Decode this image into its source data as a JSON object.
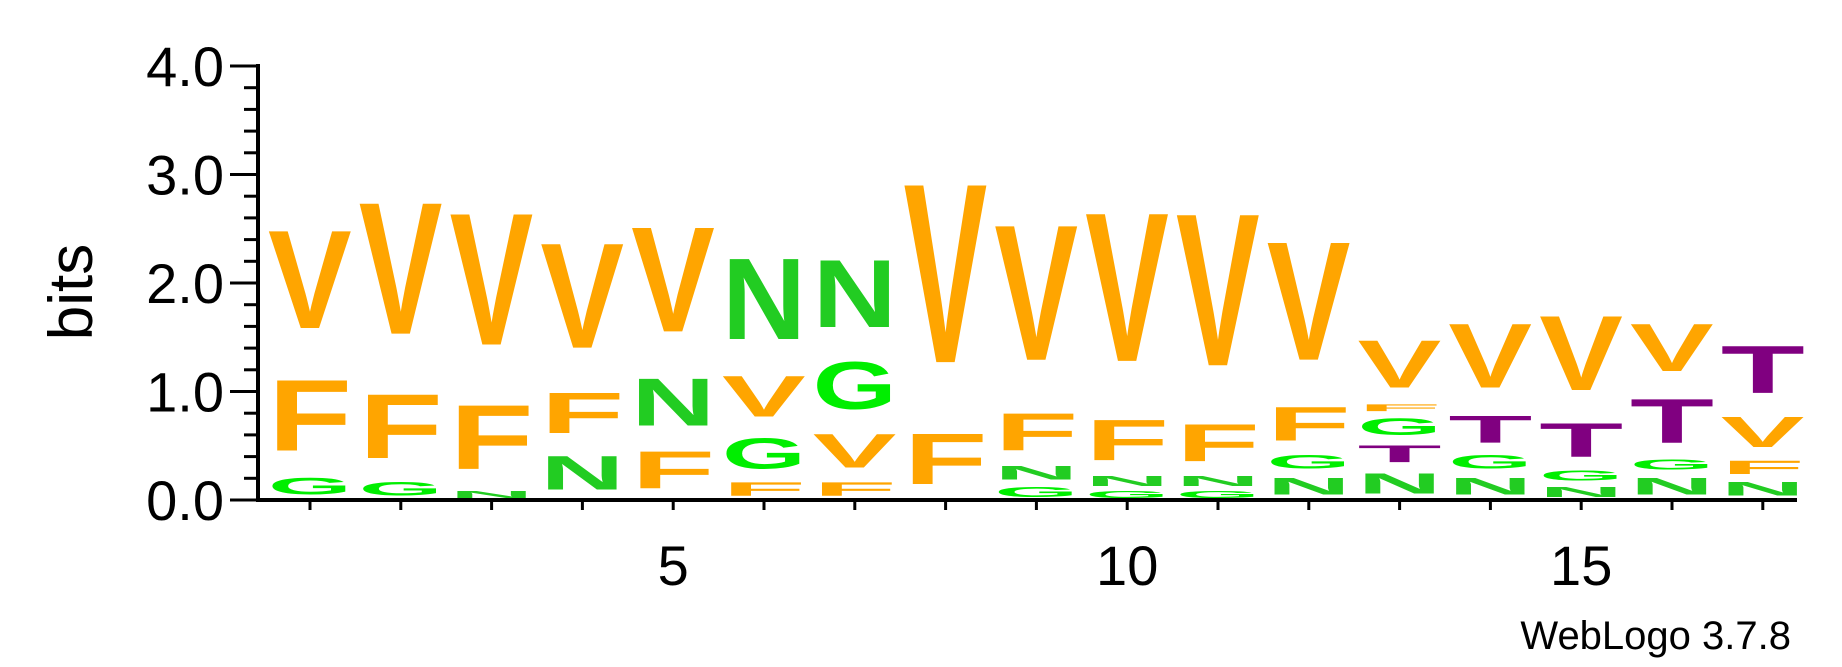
{
  "chart_data": {
    "type": "sequence-logo",
    "ylabel": "bits",
    "ylim": [
      0,
      4.0
    ],
    "yticks": [
      "0.0",
      "1.0",
      "2.0",
      "3.0",
      "4.0"
    ],
    "xticks": [
      "5",
      "10",
      "15"
    ],
    "footer": "WebLogo 3.7.8",
    "colors": {
      "V": "#FFA500",
      "F": "#FFA500",
      "N": "#22CC22",
      "G": "#00EE00",
      "T": "#800080"
    },
    "positions": [
      {
        "position": 1,
        "stack": [
          {
            "letter": "G",
            "bits": 0.25
          },
          {
            "letter": "F",
            "bits": 1.05
          },
          {
            "letter": "V",
            "bits": 1.45
          }
        ]
      },
      {
        "position": 2,
        "stack": [
          {
            "letter": "G",
            "bits": 0.2
          },
          {
            "letter": "F",
            "bits": 0.95
          },
          {
            "letter": "V",
            "bits": 1.95
          }
        ]
      },
      {
        "position": 3,
        "stack": [
          {
            "letter": "N",
            "bits": 0.1
          },
          {
            "letter": "F",
            "bits": 0.95
          },
          {
            "letter": "V",
            "bits": 1.95
          }
        ]
      },
      {
        "position": 4,
        "stack": [
          {
            "letter": "N",
            "bits": 0.5
          },
          {
            "letter": "F",
            "bits": 0.6
          },
          {
            "letter": "V",
            "bits": 1.55
          }
        ]
      },
      {
        "position": 5,
        "stack": [
          {
            "letter": "F",
            "bits": 0.55
          },
          {
            "letter": "N",
            "bits": 0.7
          },
          {
            "letter": "V",
            "bits": 1.55
          }
        ]
      },
      {
        "position": 6,
        "stack": [
          {
            "letter": "F",
            "bits": 0.2
          },
          {
            "letter": "G",
            "bits": 0.45
          },
          {
            "letter": "V",
            "bits": 0.6
          },
          {
            "letter": "N",
            "bits": 1.2
          }
        ]
      },
      {
        "position": 7,
        "stack": [
          {
            "letter": "F",
            "bits": 0.2
          },
          {
            "letter": "V",
            "bits": 0.5
          },
          {
            "letter": "G",
            "bits": 0.7
          },
          {
            "letter": "N",
            "bits": 1.0
          }
        ]
      },
      {
        "position": 8,
        "stack": [
          {
            "letter": "F",
            "bits": 0.75
          },
          {
            "letter": "V",
            "bits": 2.65
          }
        ]
      },
      {
        "position": 9,
        "stack": [
          {
            "letter": "G",
            "bits": 0.15
          },
          {
            "letter": "N",
            "bits": 0.2
          },
          {
            "letter": "F",
            "bits": 0.55
          },
          {
            "letter": "V",
            "bits": 2.0
          }
        ]
      },
      {
        "position": 10,
        "stack": [
          {
            "letter": "G",
            "bits": 0.1
          },
          {
            "letter": "N",
            "bits": 0.15
          },
          {
            "letter": "F",
            "bits": 0.6
          },
          {
            "letter": "V",
            "bits": 2.2
          }
        ]
      },
      {
        "position": 11,
        "stack": [
          {
            "letter": "G",
            "bits": 0.1
          },
          {
            "letter": "N",
            "bits": 0.15
          },
          {
            "letter": "F",
            "bits": 0.55
          },
          {
            "letter": "V",
            "bits": 2.25
          }
        ]
      },
      {
        "position": 12,
        "stack": [
          {
            "letter": "N",
            "bits": 0.25
          },
          {
            "letter": "G",
            "bits": 0.2
          },
          {
            "letter": "F",
            "bits": 0.5
          },
          {
            "letter": "V",
            "bits": 1.75
          }
        ]
      },
      {
        "position": 13,
        "stack": [
          {
            "letter": "N",
            "bits": 0.3
          },
          {
            "letter": "T",
            "bits": 0.25
          },
          {
            "letter": "G",
            "bits": 0.25
          },
          {
            "letter": "F",
            "bits": 0.1
          },
          {
            "letter": "V",
            "bits": 0.7
          }
        ]
      },
      {
        "position": 14,
        "stack": [
          {
            "letter": "N",
            "bits": 0.25
          },
          {
            "letter": "G",
            "bits": 0.2
          },
          {
            "letter": "T",
            "bits": 0.4
          },
          {
            "letter": "V",
            "bits": 0.95
          }
        ]
      },
      {
        "position": 15,
        "stack": [
          {
            "letter": "N",
            "bits": 0.15
          },
          {
            "letter": "G",
            "bits": 0.15
          },
          {
            "letter": "T",
            "bits": 0.5
          },
          {
            "letter": "V",
            "bits": 1.1
          }
        ]
      },
      {
        "position": 16,
        "stack": [
          {
            "letter": "N",
            "bits": 0.25
          },
          {
            "letter": "G",
            "bits": 0.15
          },
          {
            "letter": "T",
            "bits": 0.65
          },
          {
            "letter": "V",
            "bits": 0.7
          }
        ]
      },
      {
        "position": 17,
        "stack": [
          {
            "letter": "N",
            "bits": 0.2
          },
          {
            "letter": "F",
            "bits": 0.2
          },
          {
            "letter": "V",
            "bits": 0.45
          },
          {
            "letter": "T",
            "bits": 0.7
          }
        ]
      }
    ]
  }
}
